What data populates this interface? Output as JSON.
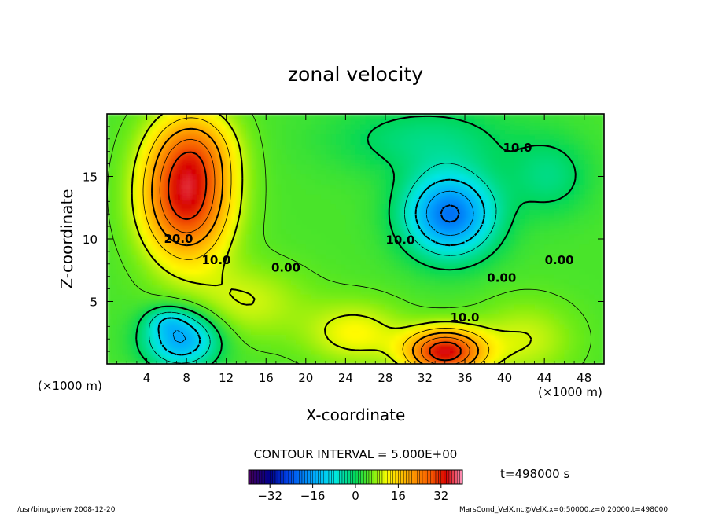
{
  "chart_data": {
    "type": "heatmap",
    "title": "zonal velocity",
    "xlabel": "X-coordinate",
    "ylabel": "Z-coordinate",
    "x_units": "(×1000 m)",
    "y_units": "(×1000 m)",
    "xlim": [
      0,
      50
    ],
    "ylim": [
      0,
      20
    ],
    "x_ticks": [
      4,
      8,
      12,
      16,
      20,
      24,
      28,
      32,
      36,
      40,
      44,
      48
    ],
    "y_ticks": [
      5,
      10,
      15
    ],
    "contour_interval_text": "CONTOUR INTERVAL = 5.000E+00",
    "time_text": "t=498000 s",
    "colorbar": {
      "range": [
        -40,
        40
      ],
      "tick_values": [
        -32,
        -16,
        0,
        16,
        32
      ],
      "tick_labels": [
        "−32",
        "−16",
        "0",
        "16",
        "32"
      ]
    },
    "contour_labels": [
      {
        "text": "20.0",
        "x": 7.2,
        "z": 10.0
      },
      {
        "text": "10.0",
        "x": 11.0,
        "z": 8.3
      },
      {
        "text": "0.00",
        "x": 18.0,
        "z": 7.7
      },
      {
        "text": "10.0",
        "x": 29.5,
        "z": 9.9
      },
      {
        "text": "10.0",
        "x": 41.3,
        "z": 17.3
      },
      {
        "text": "0.00",
        "x": 45.5,
        "z": 8.3
      },
      {
        "text": "0.00",
        "x": 39.7,
        "z": 6.9
      },
      {
        "text": "10.0",
        "x": 36.0,
        "z": 3.7
      }
    ],
    "features": [
      {
        "kind": "max",
        "x": 8.0,
        "z": 13.5,
        "value": 30
      },
      {
        "kind": "min",
        "x": 34.5,
        "z": 12.0,
        "value": -25
      },
      {
        "kind": "min",
        "x": 7.5,
        "z": 2.0,
        "value": -20
      },
      {
        "kind": "max",
        "x": 34.0,
        "z": 1.0,
        "value": 30
      }
    ]
  },
  "footer": {
    "left": "/usr/bin/gpview   2008-12-20",
    "right": "MarsCond_VelX.nc@VelX,x=0:50000,z=0:20000,t=498000"
  }
}
